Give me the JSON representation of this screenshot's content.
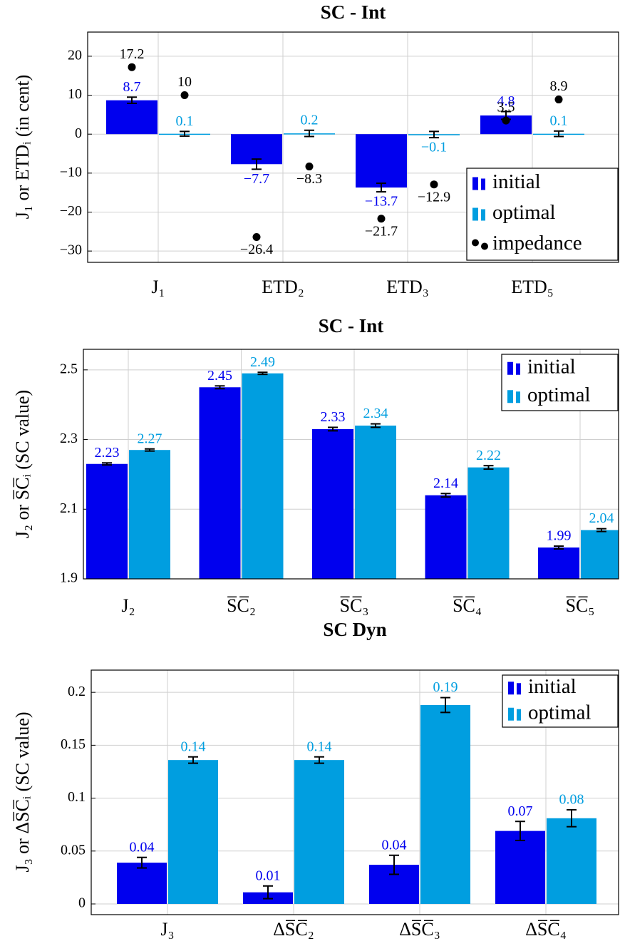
{
  "chart_data": [
    {
      "type": "bar",
      "title": "SC - Int",
      "ylabel": "J₁ or ETDᵢ (in cent)",
      "categories": [
        "J₁",
        "ETD₂",
        "ETD₃",
        "ETD₅"
      ],
      "series": [
        {
          "name": "initial",
          "color": "#0000ee",
          "values": [
            8.7,
            -7.7,
            -13.7,
            4.8
          ],
          "value_labels": [
            "8.7",
            "−7.7",
            "−13.7",
            "4.8"
          ],
          "errors": [
            0.8,
            1.3,
            1.1,
            1.0
          ]
        },
        {
          "name": "optimal",
          "color": "#009ee0",
          "values": [
            0.1,
            0.2,
            -0.1,
            0.1
          ],
          "value_labels": [
            "0.1",
            "0.2",
            "−0.1",
            "0.1"
          ],
          "errors": [
            0.6,
            0.8,
            0.8,
            0.7
          ]
        },
        {
          "name": "impedance",
          "type": "scatter",
          "color": "#000000",
          "values": [
            [
              17.2,
              10
            ],
            [
              -26.4,
              -8.3
            ],
            [
              -21.7,
              -12.9
            ],
            [
              3.5,
              8.9
            ]
          ],
          "value_labels": [
            [
              "17.2",
              "10"
            ],
            [
              "−26.4",
              "−8.3"
            ],
            [
              "−21.7",
              "−12.9"
            ],
            [
              "3.5",
              "8.9"
            ]
          ]
        }
      ],
      "ylim": [
        -32.9,
        26.2
      ],
      "yticks": [
        {
          "value": -30,
          "label": "−30"
        },
        {
          "value": -20,
          "label": "−20"
        },
        {
          "value": -10,
          "label": "−10"
        },
        0,
        10,
        20
      ],
      "grid": true,
      "legend": "lower right"
    },
    {
      "type": "bar",
      "title": "SC - Int",
      "ylabel": "J₂ or S̅C̅ᵢ (SC value)",
      "categories": [
        "J₂",
        "S̅C̅₂",
        "S̅C̅₃",
        "S̅C̅₄",
        "S̅C̅₅"
      ],
      "series": [
        {
          "name": "initial",
          "color": "#0000ee",
          "values": [
            2.23,
            2.45,
            2.33,
            2.14,
            1.99
          ],
          "value_labels": [
            "2.23",
            "2.45",
            "2.33",
            "2.14",
            "1.99"
          ],
          "errors": [
            0.003,
            0.004,
            0.005,
            0.005,
            0.004
          ]
        },
        {
          "name": "optimal",
          "color": "#009ee0",
          "values": [
            2.27,
            2.49,
            2.34,
            2.22,
            2.04
          ],
          "value_labels": [
            "2.27",
            "2.49",
            "2.34",
            "2.22",
            "2.04"
          ],
          "errors": [
            0.003,
            0.003,
            0.005,
            0.005,
            0.004
          ]
        }
      ],
      "ylim": [
        1.9,
        2.559
      ],
      "yticks": [
        1.9,
        2.1,
        2.3,
        2.5
      ],
      "grid": true,
      "legend": "upper right"
    },
    {
      "type": "bar",
      "title": "SC Dyn",
      "ylabel": "J₃ or ΔS̅C̅ᵢ (SC value)",
      "categories": [
        "J₃",
        "ΔS̅C̅₂",
        "ΔS̅C̅₃",
        "ΔS̅C̅₄"
      ],
      "series": [
        {
          "name": "initial",
          "color": "#0000ee",
          "values": [
            0.039,
            0.011,
            0.037,
            0.069
          ],
          "value_labels": [
            "0.04",
            "0.01",
            "0.04",
            "0.07"
          ],
          "errors": [
            0.005,
            0.006,
            0.009,
            0.009
          ]
        },
        {
          "name": "optimal",
          "color": "#009ee0",
          "values": [
            0.136,
            0.136,
            0.188,
            0.081
          ],
          "value_labels": [
            "0.14",
            "0.14",
            "0.19",
            "0.08"
          ],
          "errors": [
            0.003,
            0.003,
            0.007,
            0.008
          ]
        }
      ],
      "ylim": [
        -0.0101,
        0.221
      ],
      "yticks": [
        0,
        0.05,
        0.1,
        0.15,
        0.2
      ],
      "grid": true,
      "legend": "upper right"
    }
  ]
}
